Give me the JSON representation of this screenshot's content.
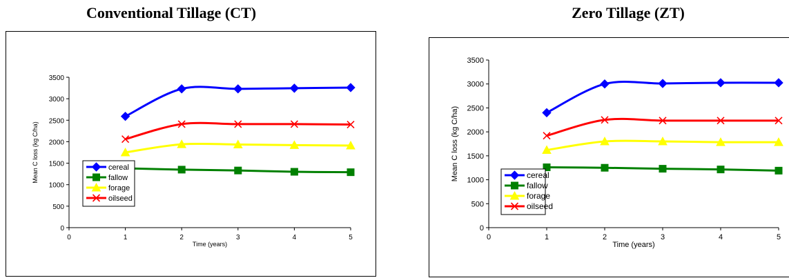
{
  "chart_data": [
    {
      "type": "line",
      "title": "Conventional Tillage (CT)",
      "xlabel": "Time (years)",
      "ylabel": "Mean C loss  (kg C/ha)",
      "xlim": [
        0,
        5
      ],
      "ylim": [
        0,
        3500
      ],
      "x_ticks": [
        "0",
        "1",
        "2",
        "3",
        "4",
        "5"
      ],
      "y_ticks": [
        "0",
        "500",
        "1000",
        "1500",
        "2000",
        "2500",
        "3000",
        "3500"
      ],
      "x": [
        1,
        2,
        3,
        4,
        5
      ],
      "series": [
        {
          "name": "cereal",
          "color": "#0000ff",
          "marker": "diamond",
          "values": [
            2590,
            3230,
            3230,
            3245,
            3260
          ]
        },
        {
          "name": "fallow",
          "color": "#008000",
          "marker": "square",
          "values": [
            1380,
            1350,
            1330,
            1300,
            1290
          ]
        },
        {
          "name": "forage",
          "color": "#ffff00",
          "marker": "triangle",
          "values": [
            1750,
            1940,
            1935,
            1920,
            1910
          ]
        },
        {
          "name": "oilseed",
          "color": "#ff0000",
          "marker": "x",
          "values": [
            2060,
            2410,
            2410,
            2410,
            2400
          ]
        }
      ],
      "grid": false,
      "legend": "bottom-left"
    },
    {
      "type": "line",
      "title": "Zero Tillage (ZT)",
      "xlabel": "Time (years)",
      "ylabel": "Mean C loss  (kg C/ha)",
      "xlim": [
        0,
        5
      ],
      "ylim": [
        0,
        3500
      ],
      "x_ticks": [
        "0",
        "1",
        "2",
        "3",
        "4",
        "5"
      ],
      "y_ticks": [
        "0",
        "500",
        "1000",
        "1500",
        "2000",
        "2500",
        "3000",
        "3500"
      ],
      "x": [
        1,
        2,
        3,
        4,
        5
      ],
      "series": [
        {
          "name": "cereal",
          "color": "#0000ff",
          "marker": "diamond",
          "values": [
            2400,
            3000,
            3010,
            3025,
            3025
          ]
        },
        {
          "name": "fallow",
          "color": "#008000",
          "marker": "square",
          "values": [
            1260,
            1250,
            1230,
            1215,
            1190
          ]
        },
        {
          "name": "forage",
          "color": "#ffff00",
          "marker": "triangle",
          "values": [
            1620,
            1800,
            1800,
            1785,
            1785
          ]
        },
        {
          "name": "oilseed",
          "color": "#ff0000",
          "marker": "x",
          "values": [
            1920,
            2250,
            2235,
            2235,
            2235
          ]
        }
      ],
      "grid": false,
      "legend": "bottom-left"
    }
  ]
}
